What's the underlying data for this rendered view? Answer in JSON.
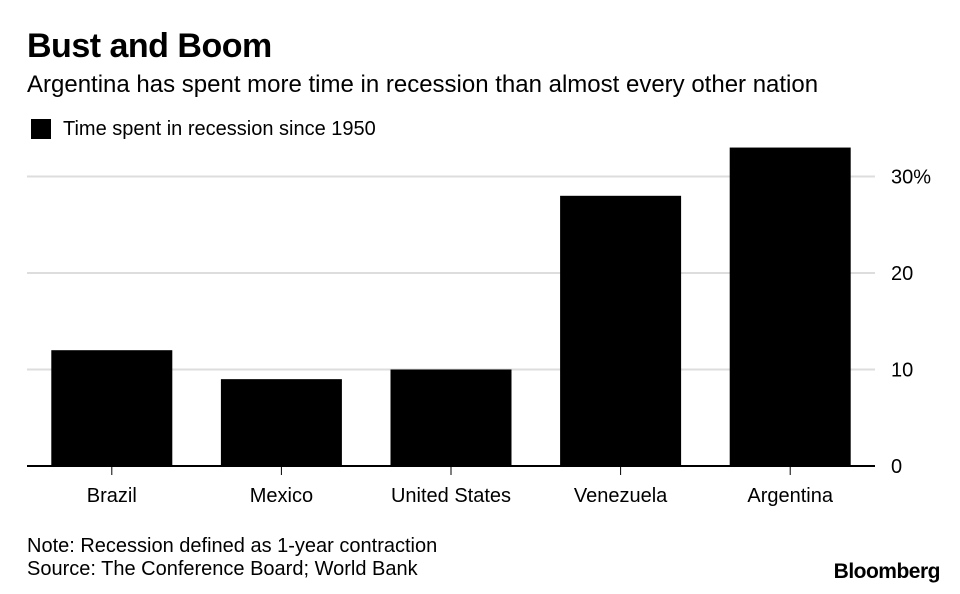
{
  "header": {
    "title": "Bust and Boom",
    "subtitle": "Argentina has spent more time in recession than almost every other nation"
  },
  "legend": {
    "label": "Time spent in recession since 1950",
    "color": "#000000"
  },
  "chart_data": {
    "type": "bar",
    "title": "Bust and Boom",
    "subtitle": "Argentina has spent more time in recession than almost every other nation",
    "categories": [
      "Brazil",
      "Mexico",
      "United States",
      "Venezuela",
      "Argentina"
    ],
    "series": [
      {
        "name": "Time spent in recession since 1950",
        "values": [
          12,
          9,
          10,
          28,
          33
        ],
        "color": "#000000"
      }
    ],
    "xlabel": "",
    "ylabel": "",
    "ylim": [
      0,
      34
    ],
    "yticks": [
      0,
      10,
      20,
      30
    ],
    "ytick_labels": [
      "0",
      "10",
      "20",
      "30%"
    ],
    "y_axis_position": "right",
    "grid": true,
    "grid_color": "#dddddd",
    "legend_position": "top-left"
  },
  "footer": {
    "note": "Note: Recession defined as 1-year contraction",
    "source": "Source: The Conference Board; World Bank"
  },
  "brand": "Bloomberg"
}
